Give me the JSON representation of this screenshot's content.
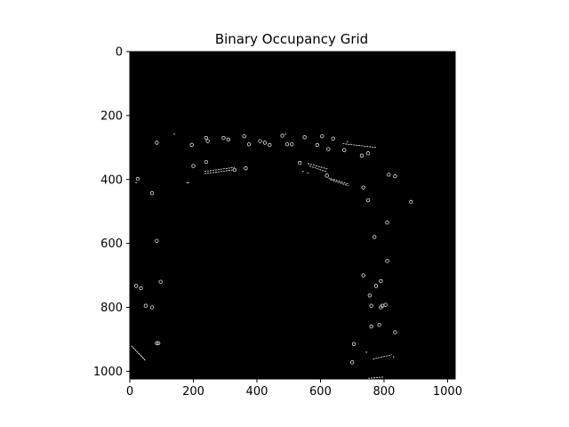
{
  "chart_data": {
    "type": "heatmap",
    "title": "Binary Occupancy Grid",
    "xlabel": "",
    "ylabel": "",
    "xlim": [
      0,
      1024
    ],
    "ylim": [
      1024,
      0
    ],
    "x_ticks": [
      0,
      200,
      400,
      600,
      800,
      1000
    ],
    "y_ticks": [
      0,
      200,
      400,
      600,
      800,
      1000
    ],
    "grid": false,
    "colors": {
      "background": "#000000",
      "occupied": "#ffffff",
      "figure": "#ffffff"
    },
    "occupied_rings": [
      [
        85,
        285
      ],
      [
        195,
        292
      ],
      [
        240,
        270
      ],
      [
        245,
        280
      ],
      [
        295,
        270
      ],
      [
        310,
        275
      ],
      [
        360,
        265
      ],
      [
        375,
        290
      ],
      [
        410,
        280
      ],
      [
        425,
        285
      ],
      [
        440,
        292
      ],
      [
        480,
        263
      ],
      [
        495,
        290
      ],
      [
        510,
        290
      ],
      [
        550,
        268
      ],
      [
        590,
        292
      ],
      [
        605,
        265
      ],
      [
        625,
        305
      ],
      [
        640,
        272
      ],
      [
        675,
        308
      ],
      [
        730,
        325
      ],
      [
        750,
        318
      ],
      [
        200,
        358
      ],
      [
        240,
        345
      ],
      [
        330,
        370
      ],
      [
        365,
        365
      ],
      [
        535,
        348
      ],
      [
        620,
        388
      ],
      [
        815,
        385
      ],
      [
        835,
        390
      ],
      [
        25,
        398
      ],
      [
        70,
        443
      ],
      [
        735,
        425
      ],
      [
        750,
        465
      ],
      [
        885,
        470
      ],
      [
        810,
        535
      ],
      [
        770,
        580
      ],
      [
        85,
        592
      ],
      [
        810,
        655
      ],
      [
        735,
        700
      ],
      [
        97,
        720
      ],
      [
        20,
        733
      ],
      [
        35,
        740
      ],
      [
        790,
        718
      ],
      [
        775,
        733
      ],
      [
        755,
        763
      ],
      [
        50,
        795
      ],
      [
        70,
        800
      ],
      [
        760,
        795
      ],
      [
        795,
        795
      ],
      [
        805,
        792
      ],
      [
        790,
        800
      ],
      [
        760,
        860
      ],
      [
        785,
        855
      ],
      [
        835,
        878
      ],
      [
        85,
        912
      ],
      [
        90,
        912
      ],
      [
        705,
        915
      ],
      [
        700,
        972
      ]
    ],
    "occupied_segments": [
      [
        [
          560,
          350
        ],
        [
          625,
          368
        ]
      ],
      [
        [
          565,
          358
        ],
        [
          620,
          376
        ]
      ],
      [
        [
          625,
          395
        ],
        [
          690,
          415
        ]
      ],
      [
        [
          630,
          400
        ],
        [
          688,
          420
        ]
      ],
      [
        [
          235,
          375
        ],
        [
          330,
          362
        ]
      ],
      [
        [
          235,
          382
        ],
        [
          325,
          370
        ]
      ],
      [
        [
          670,
          288
        ],
        [
          775,
          300
        ]
      ],
      [
        [
          5,
          920
        ],
        [
          48,
          965
        ]
      ],
      [
        [
          10,
          925
        ],
        [
          50,
          968
        ]
      ],
      [
        [
          765,
          962
        ],
        [
          825,
          948
        ]
      ],
      [
        [
          750,
          1022
        ],
        [
          800,
          1018
        ]
      ]
    ],
    "occupied_points": [
      [
        140,
        258
      ],
      [
        180,
        410
      ],
      [
        185,
        410
      ],
      [
        490,
        258
      ],
      [
        685,
        282
      ],
      [
        545,
        375
      ],
      [
        560,
        380
      ],
      [
        830,
        955
      ],
      [
        20,
        410
      ],
      [
        745,
        940
      ]
    ]
  }
}
